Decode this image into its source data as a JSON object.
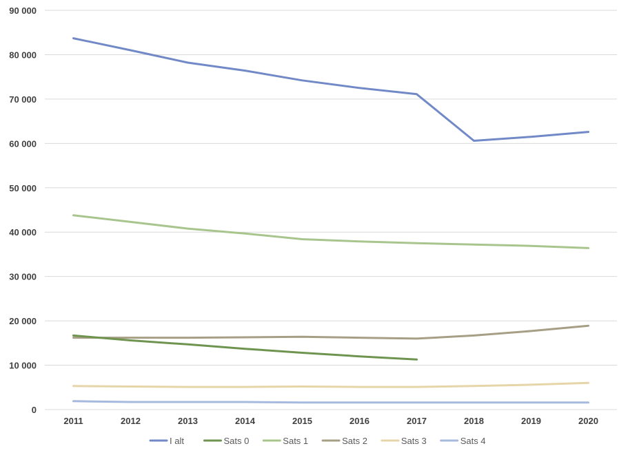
{
  "chart_data": {
    "type": "line",
    "x": [
      "2011",
      "2012",
      "2013",
      "2014",
      "2015",
      "2016",
      "2017",
      "2018",
      "2019",
      "2020"
    ],
    "ylim": [
      0,
      90000
    ],
    "yticks": [
      {
        "value": 0,
        "label": "0"
      },
      {
        "value": 10000,
        "label": "10 000"
      },
      {
        "value": 20000,
        "label": "20 000"
      },
      {
        "value": 30000,
        "label": "30 000"
      },
      {
        "value": 40000,
        "label": "40 000"
      },
      {
        "value": 50000,
        "label": "50 000"
      },
      {
        "value": 60000,
        "label": "60 000"
      },
      {
        "value": 70000,
        "label": "70 000"
      },
      {
        "value": 80000,
        "label": "80 000"
      },
      {
        "value": 90000,
        "label": "90 000"
      }
    ],
    "grid": "horizontal",
    "legend": "bottom",
    "series": [
      {
        "name": "I alt",
        "color": "#7189c6",
        "values": [
          83700,
          81000,
          78200,
          76400,
          74200,
          72500,
          71100,
          60600,
          61500,
          62600
        ]
      },
      {
        "name": "Sats 0",
        "color": "#6f9450",
        "values": [
          16700,
          15600,
          14700,
          13700,
          12800,
          12000,
          11300,
          null,
          null,
          null
        ]
      },
      {
        "name": "Sats 1",
        "color": "#a9c58e",
        "values": [
          43800,
          42300,
          40800,
          39700,
          38400,
          37900,
          37500,
          37200,
          36900,
          36400
        ]
      },
      {
        "name": "Sats 2",
        "color": "#a79e86",
        "values": [
          16200,
          16200,
          16200,
          16300,
          16400,
          16200,
          16000,
          16700,
          17700,
          18900
        ]
      },
      {
        "name": "Sats 3",
        "color": "#e6d5a8",
        "values": [
          5300,
          5200,
          5100,
          5100,
          5200,
          5100,
          5100,
          5300,
          5600,
          6000
        ]
      },
      {
        "name": "Sats 4",
        "color": "#a6b9df",
        "values": [
          1900,
          1700,
          1700,
          1700,
          1600,
          1600,
          1600,
          1600,
          1600,
          1600
        ]
      }
    ]
  }
}
